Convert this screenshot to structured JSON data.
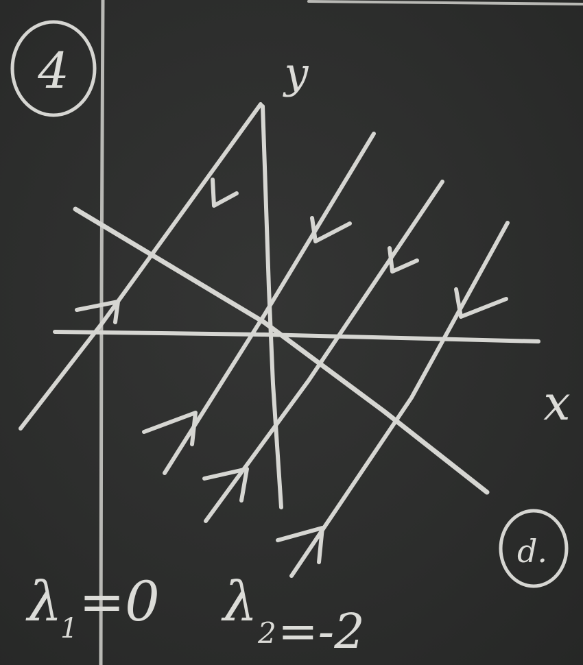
{
  "board": {
    "panel_label": "4",
    "corner_label": "d.",
    "axes": {
      "x_label": "x",
      "y_label": "y"
    },
    "eigen": {
      "lambda1_symbol": "λ",
      "lambda1_sub": "1",
      "lambda1_rhs": "=0",
      "lambda2_symbol": "λ",
      "lambda2_sub": "2",
      "lambda2_rhs": "=-2"
    }
  },
  "colors": {
    "board": "#2e2f2e",
    "chalk": "#d6d6d2"
  }
}
